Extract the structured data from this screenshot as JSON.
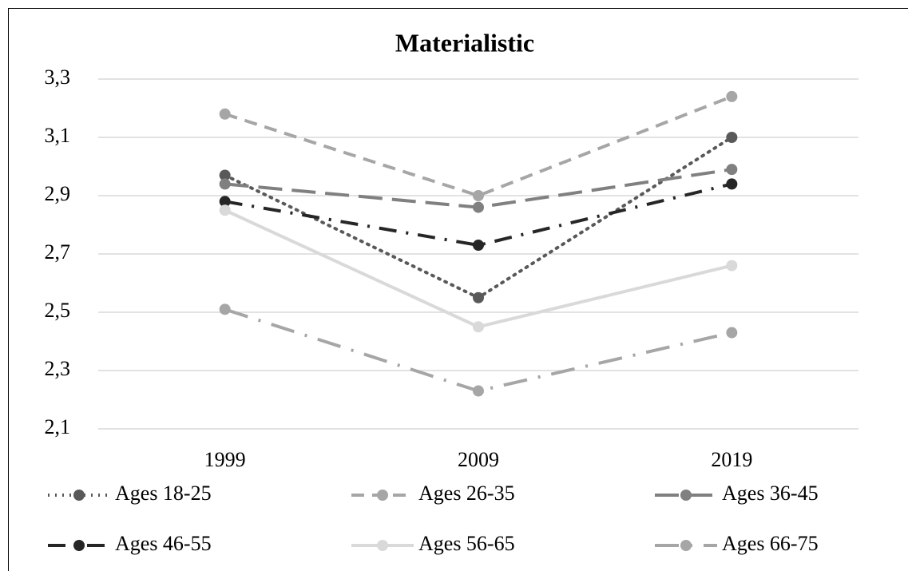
{
  "chart_data": {
    "type": "line",
    "title": "Materialistic",
    "categories": [
      "1999",
      "2009",
      "2019"
    ],
    "series": [
      {
        "name": "Ages 18-25",
        "color": "#595959",
        "dash": "dot",
        "values": [
          2.97,
          2.55,
          3.1
        ]
      },
      {
        "name": "Ages 26-35",
        "color": "#a6a6a6",
        "dash": "dash",
        "values": [
          3.18,
          2.9,
          3.24
        ]
      },
      {
        "name": "Ages 36-45",
        "color": "#808080",
        "dash": "longDash",
        "values": [
          2.94,
          2.86,
          2.99
        ]
      },
      {
        "name": "Ages 46-55",
        "color": "#262626",
        "dash": "dashDot",
        "values": [
          2.88,
          2.73,
          2.94
        ]
      },
      {
        "name": "Ages 56-65",
        "color": "#d9d9d9",
        "dash": "solid",
        "values": [
          2.85,
          2.45,
          2.66
        ]
      },
      {
        "name": "Ages 66-75",
        "color": "#a6a6a6",
        "dash": "longDashDot",
        "values": [
          2.51,
          2.23,
          2.43
        ]
      }
    ],
    "ylim": [
      2.1,
      3.3
    ],
    "yticks": [
      {
        "value": 2.1,
        "label": "2,1"
      },
      {
        "value": 2.3,
        "label": "2,3"
      },
      {
        "value": 2.5,
        "label": "2,5"
      },
      {
        "value": 2.7,
        "label": "2,7"
      },
      {
        "value": 2.9,
        "label": "2,9"
      },
      {
        "value": 3.1,
        "label": "3,1"
      },
      {
        "value": 3.3,
        "label": "3,3"
      }
    ],
    "grid": true,
    "legend": "bottom"
  }
}
